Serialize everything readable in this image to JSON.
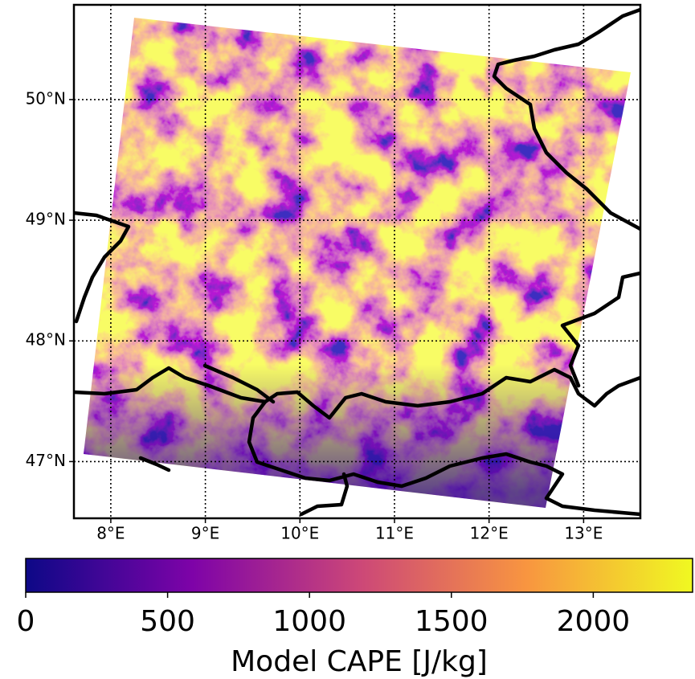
{
  "map": {
    "xlim": [
      7.61,
      13.6
    ],
    "ylim": [
      46.53,
      50.785
    ],
    "xticks": [
      {
        "value": 8,
        "label": "8°E"
      },
      {
        "value": 9,
        "label": "9°E"
      },
      {
        "value": 10,
        "label": "10°E"
      },
      {
        "value": 11,
        "label": "11°E"
      },
      {
        "value": 12,
        "label": "12°E"
      },
      {
        "value": 13,
        "label": "13°E"
      }
    ],
    "yticks": [
      {
        "value": 47,
        "label": "47°N"
      },
      {
        "value": 48,
        "label": "48°N"
      },
      {
        "value": 49,
        "label": "49°N"
      },
      {
        "value": 50,
        "label": "50°N"
      }
    ],
    "grid": true
  },
  "colorbar": {
    "label": "Model CAPE [J/kg]",
    "lim": [
      0,
      2350
    ],
    "ticks": [
      0,
      500,
      1000,
      1500,
      2000
    ],
    "colormap": "plasma"
  }
}
